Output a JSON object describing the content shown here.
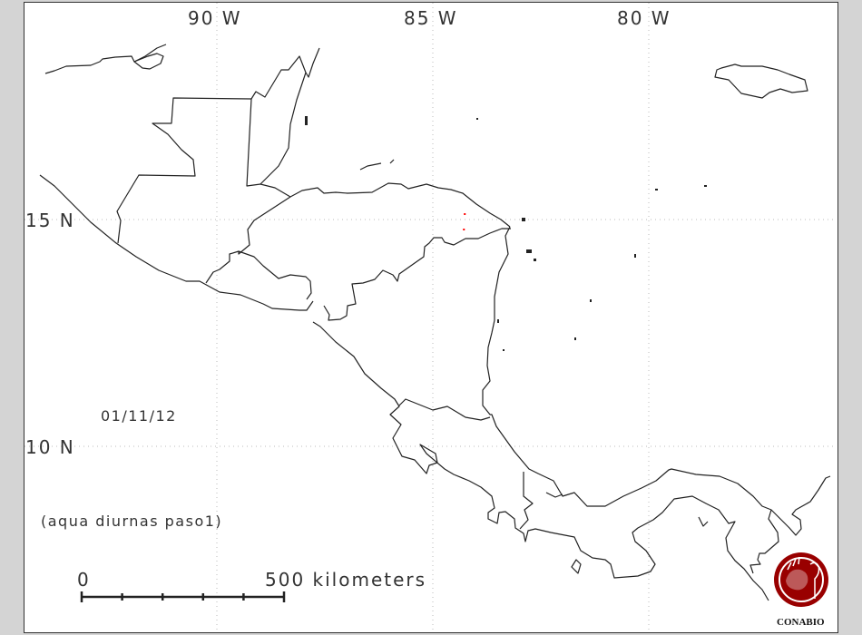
{
  "map": {
    "longitude_labels": [
      "90 W",
      "85 W",
      "80 W"
    ],
    "latitude_labels": [
      "15 N",
      "10 N"
    ],
    "date": "01/11/12",
    "caption": "(aqua diurnas paso1)",
    "scale_bar": {
      "start_label": "0",
      "end_label": "500 kilometers",
      "divisions": 5
    },
    "hotspots": [
      {
        "lon": -84.26,
        "lat": 15.12
      },
      {
        "lon": -84.28,
        "lat": 14.78
      }
    ],
    "colors": {
      "background": "#d4d4d4",
      "coastline": "#222222",
      "hotspot": "#ff0000",
      "logo": "#990000",
      "graticule": "#bbbbbb"
    }
  },
  "logo": {
    "text": "CONABIO"
  }
}
